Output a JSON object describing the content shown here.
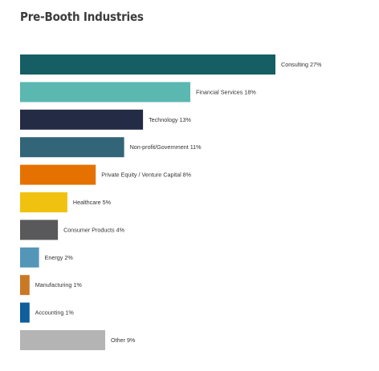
{
  "chart_data": {
    "type": "bar",
    "orientation": "horizontal",
    "title": "Pre-Booth Industries",
    "unit": "%",
    "categories": [
      "Consulting",
      "Financial Services",
      "Technology",
      "Non-profit/Government",
      "Private Equity / Venture Capital",
      "Healthcare",
      "Consumer Products",
      "Energy",
      "Manufacturing",
      "Accounting",
      "Other"
    ],
    "values": [
      27,
      18,
      13,
      11,
      8,
      5,
      4,
      2,
      1,
      1,
      9
    ],
    "labels": [
      "Consulting 27%",
      "Financial Services 18%",
      "Technology 13%",
      "Non-profit/Government 11%",
      "Private Equity / Venture Capital 8%",
      "Healthcare 5%",
      "Consumer Products 4%",
      "Energy 2%",
      "Manufacturing 1%",
      "Accounting 1%",
      "Other 9%"
    ],
    "colors": [
      "#155e63",
      "#5ab8b0",
      "#232b45",
      "#336579",
      "#e57200",
      "#f0c20f",
      "#59595b",
      "#5496b8",
      "#c97825",
      "#0e5f9a",
      "#b4b4b4"
    ],
    "axes": "none",
    "grid": false,
    "legend": "none",
    "data_labels": "right of bars"
  }
}
